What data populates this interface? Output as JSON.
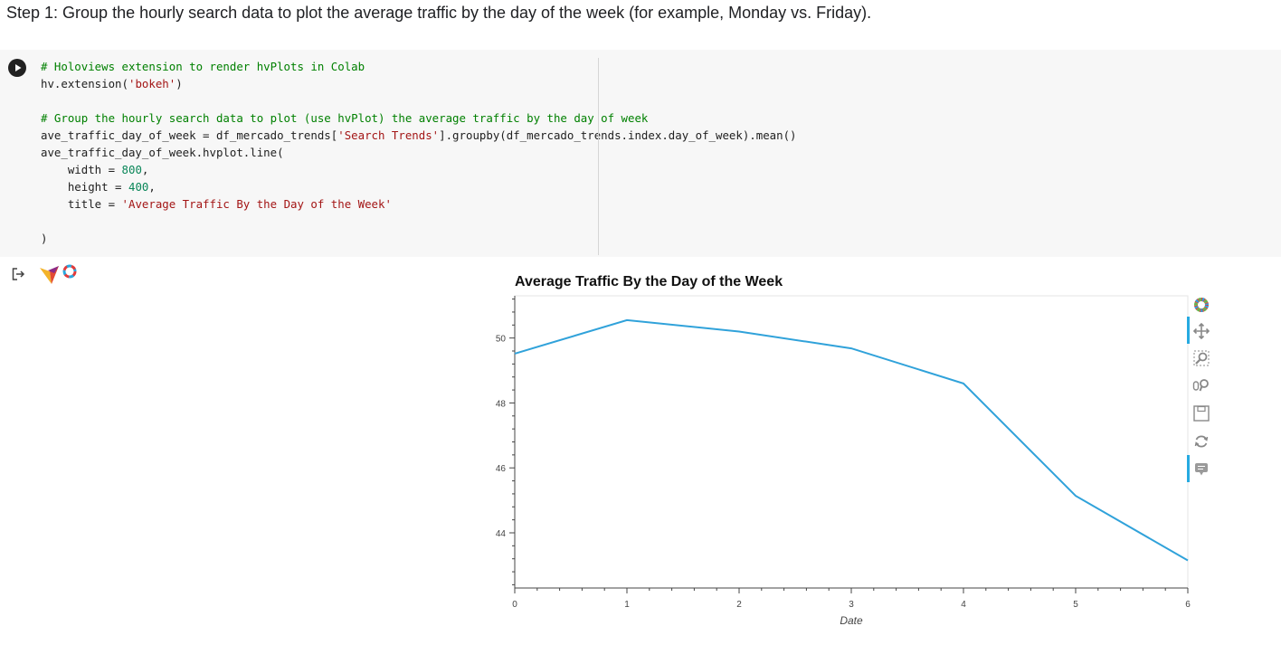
{
  "heading": "Step 1: Group the hourly search data to plot the average traffic by the day of the week (for example, Monday vs. Friday).",
  "code_lines": [
    {
      "parts": [
        {
          "cls": "cm",
          "text": "# Holoviews extension to render hvPlots in Colab"
        }
      ]
    },
    {
      "parts": [
        {
          "cls": "",
          "text": "hv.extension("
        },
        {
          "cls": "str",
          "text": "'bokeh'"
        },
        {
          "cls": "",
          "text": ")"
        }
      ]
    },
    {
      "parts": []
    },
    {
      "parts": [
        {
          "cls": "cm",
          "text": "# Group the hourly search data to plot (use hvPlot) the average traffic by the day of week"
        }
      ]
    },
    {
      "parts": [
        {
          "cls": "",
          "text": "ave_traffic_day_of_week = df_mercado_trends["
        },
        {
          "cls": "str",
          "text": "'Search Trends'"
        },
        {
          "cls": "",
          "text": "].groupby(df_mercado_trends.index.day_of_week).mean()"
        }
      ]
    },
    {
      "parts": [
        {
          "cls": "",
          "text": "ave_traffic_day_of_week.hvplot.line("
        }
      ]
    },
    {
      "parts": [
        {
          "cls": "",
          "text": "    width = "
        },
        {
          "cls": "num",
          "text": "800"
        },
        {
          "cls": "",
          "text": ","
        }
      ]
    },
    {
      "parts": [
        {
          "cls": "",
          "text": "    height = "
        },
        {
          "cls": "num",
          "text": "400"
        },
        {
          "cls": "",
          "text": ","
        }
      ]
    },
    {
      "parts": [
        {
          "cls": "",
          "text": "    title = "
        },
        {
          "cls": "str",
          "text": "'Average Traffic By the Day of the Week'"
        }
      ]
    },
    {
      "parts": []
    },
    {
      "parts": [
        {
          "cls": "",
          "text": ")"
        }
      ]
    }
  ],
  "icons": {
    "run": "play-icon",
    "output": "output-icon",
    "logo": "holoviews-logo",
    "tools": [
      "bokeh-logo",
      "pan-icon",
      "box-zoom-icon",
      "wheel-zoom-icon",
      "save-icon",
      "reset-icon",
      "hover-icon"
    ]
  },
  "colors": {
    "line": "#30a2da",
    "toolbar_active": "#26aae1"
  },
  "chart_data": {
    "type": "line",
    "title": "Average Traffic By the Day of the Week",
    "xlabel": "Date",
    "ylabel": "",
    "x": [
      0,
      1,
      2,
      3,
      4,
      5,
      6
    ],
    "values": [
      49.52,
      50.55,
      50.2,
      49.68,
      48.6,
      45.14,
      43.15
    ],
    "xlim": [
      0,
      6
    ],
    "ylim": [
      42.3,
      51.3
    ],
    "xticks": [
      0,
      1,
      2,
      3,
      4,
      5,
      6
    ],
    "yticks": [
      44,
      46,
      48,
      50
    ],
    "grid": false
  }
}
